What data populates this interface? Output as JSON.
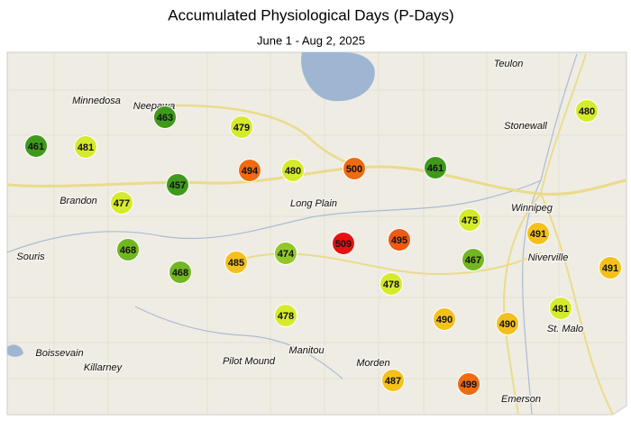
{
  "header": {
    "title": "Accumulated Physiological Days (P-Days)",
    "subtitle": "June 1 - Aug 2, 2025"
  },
  "places": [
    "Teulon",
    "Minnedosa",
    "Neepawa",
    "Stonewall",
    "Brandon",
    "Winnipeg",
    "Long Plain",
    "Souris",
    "Niverville",
    "St. Malo",
    "Boissevain",
    "Killarney",
    "Pilot Mound",
    "Manitou",
    "Morden",
    "Emerson"
  ],
  "stations": [
    {
      "value": 461,
      "color": "#3f9a1c"
    },
    {
      "value": 481,
      "color": "#d6ea2c"
    },
    {
      "value": 463,
      "color": "#3f9a1c"
    },
    {
      "value": 479,
      "color": "#d6ea2c"
    },
    {
      "value": 494,
      "color": "#f06a10"
    },
    {
      "value": 480,
      "color": "#d6ea2c"
    },
    {
      "value": 500,
      "color": "#f06a10"
    },
    {
      "value": 461,
      "color": "#3f9a1c"
    },
    {
      "value": 480,
      "color": "#d6ea2c"
    },
    {
      "value": 457,
      "color": "#3f9a1c"
    },
    {
      "value": 477,
      "color": "#d6ea2c"
    },
    {
      "value": 475,
      "color": "#d6ea2c"
    },
    {
      "value": 491,
      "color": "#f4c11a"
    },
    {
      "value": 509,
      "color": "#e81010"
    },
    {
      "value": 495,
      "color": "#ee5a12"
    },
    {
      "value": 468,
      "color": "#72b622"
    },
    {
      "value": 474,
      "color": "#92c72a"
    },
    {
      "value": 467,
      "color": "#72b622"
    },
    {
      "value": 485,
      "color": "#f4c11a"
    },
    {
      "value": 491,
      "color": "#f4c11a"
    },
    {
      "value": 468,
      "color": "#72b622"
    },
    {
      "value": 478,
      "color": "#d6ea2c"
    },
    {
      "value": 481,
      "color": "#d6ea2c"
    },
    {
      "value": 478,
      "color": "#d6ea2c"
    },
    {
      "value": 490,
      "color": "#f4c11a"
    },
    {
      "value": 490,
      "color": "#f4c11a"
    },
    {
      "value": 487,
      "color": "#f4c11a"
    },
    {
      "value": 499,
      "color": "#f06a10"
    }
  ]
}
